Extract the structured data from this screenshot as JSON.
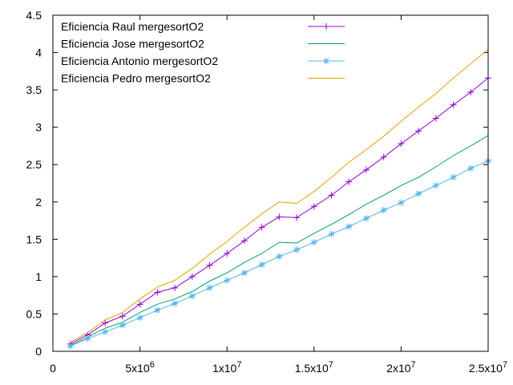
{
  "chart_data": {
    "type": "line",
    "title": "",
    "xlabel": "",
    "ylabel": "",
    "xlim": [
      0,
      25000000
    ],
    "ylim": [
      0,
      4.5
    ],
    "grid": false,
    "legend_position": "top-left",
    "x_ticks": [
      {
        "value": 0,
        "label": "0",
        "exp": ""
      },
      {
        "value": 5000000,
        "label": "5x10",
        "exp": "6"
      },
      {
        "value": 10000000,
        "label": "1x10",
        "exp": "7"
      },
      {
        "value": 15000000,
        "label": "1.5x10",
        "exp": "7"
      },
      {
        "value": 20000000,
        "label": "2x10",
        "exp": "7"
      },
      {
        "value": 25000000,
        "label": "2.5x10",
        "exp": "7"
      }
    ],
    "y_ticks": [
      {
        "value": 0,
        "label": "0"
      },
      {
        "value": 0.5,
        "label": "0.5"
      },
      {
        "value": 1,
        "label": "1"
      },
      {
        "value": 1.5,
        "label": "1.5"
      },
      {
        "value": 2,
        "label": "2"
      },
      {
        "value": 2.5,
        "label": "2.5"
      },
      {
        "value": 3,
        "label": "3"
      },
      {
        "value": 3.5,
        "label": "3.5"
      },
      {
        "value": 4,
        "label": "4"
      },
      {
        "value": 4.5,
        "label": "4.5"
      }
    ],
    "x": [
      1000000,
      2000000,
      3000000,
      4000000,
      5000000,
      6000000,
      7000000,
      8000000,
      9000000,
      10000000,
      11000000,
      12000000,
      13000000,
      14000000,
      15000000,
      16000000,
      17000000,
      18000000,
      19000000,
      20000000,
      21000000,
      22000000,
      23000000,
      24000000,
      25000000
    ],
    "series": [
      {
        "name": "Eficiencia Raul mergesortO2",
        "color": "#9400d3",
        "marker": "plus",
        "values": [
          0.1,
          0.22,
          0.38,
          0.47,
          0.63,
          0.79,
          0.85,
          1.0,
          1.15,
          1.31,
          1.48,
          1.66,
          1.8,
          1.79,
          1.94,
          2.09,
          2.27,
          2.43,
          2.6,
          2.78,
          2.95,
          3.12,
          3.3,
          3.47,
          3.66
        ]
      },
      {
        "name": "Eficiencia Jose mergesortO2",
        "color": "#009e73",
        "marker": "none",
        "values": [
          0.08,
          0.19,
          0.31,
          0.39,
          0.52,
          0.63,
          0.7,
          0.8,
          0.94,
          1.05,
          1.19,
          1.31,
          1.46,
          1.45,
          1.58,
          1.7,
          1.83,
          1.97,
          2.09,
          2.22,
          2.33,
          2.47,
          2.62,
          2.75,
          2.89
        ]
      },
      {
        "name": "Eficiencia Antonio mergesortO2",
        "color": "#56b4e9",
        "marker": "star",
        "values": [
          0.07,
          0.17,
          0.26,
          0.35,
          0.45,
          0.55,
          0.64,
          0.74,
          0.85,
          0.95,
          1.05,
          1.16,
          1.27,
          1.36,
          1.46,
          1.57,
          1.67,
          1.78,
          1.89,
          1.99,
          2.11,
          2.22,
          2.33,
          2.45,
          2.55
        ]
      },
      {
        "name": "Eficiencia Pedro mergesortO2",
        "color": "#e69f00",
        "marker": "none",
        "values": [
          0.12,
          0.25,
          0.42,
          0.52,
          0.7,
          0.86,
          0.95,
          1.11,
          1.3,
          1.47,
          1.66,
          1.84,
          2.0,
          1.98,
          2.14,
          2.33,
          2.53,
          2.7,
          2.88,
          3.08,
          3.27,
          3.45,
          3.66,
          3.85,
          4.04
        ]
      }
    ]
  }
}
